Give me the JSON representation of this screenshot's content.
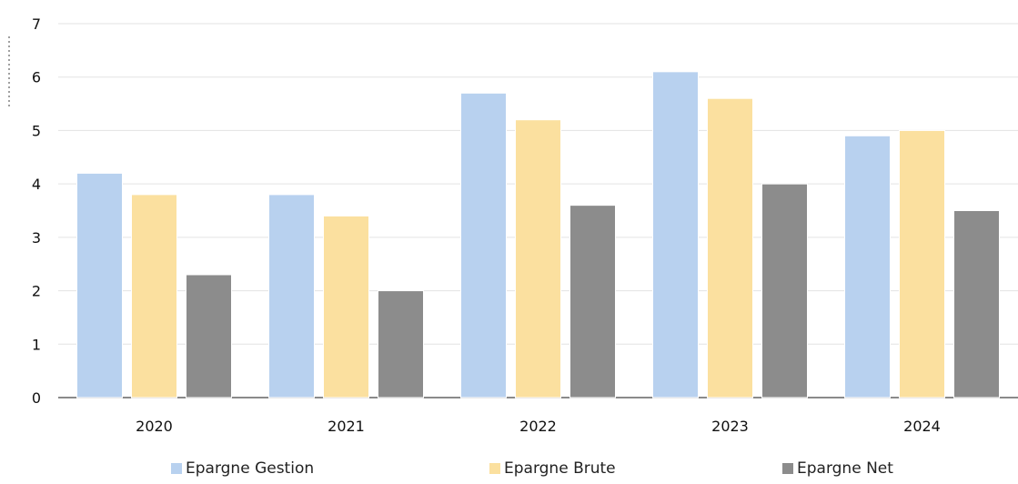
{
  "chart_data": {
    "type": "bar",
    "categories": [
      "2020",
      "2021",
      "2022",
      "2023",
      "2024"
    ],
    "series": [
      {
        "name": "Epargne Gestion",
        "color": "#b8d1ef",
        "values": [
          4.2,
          3.8,
          5.7,
          6.1,
          4.9
        ]
      },
      {
        "name": "Epargne Brute",
        "color": "#fbe09f",
        "values": [
          3.8,
          3.4,
          5.2,
          5.6,
          5.0
        ]
      },
      {
        "name": "Epargne Net",
        "color": "#8c8c8c",
        "values": [
          2.3,
          2.0,
          3.6,
          4.0,
          3.5
        ]
      }
    ],
    "yticks": [
      "0",
      "1",
      "2",
      "3",
      "4",
      "5",
      "6",
      "7"
    ],
    "ylim": [
      0,
      7
    ],
    "grid": true,
    "legend_position": "bottom"
  }
}
